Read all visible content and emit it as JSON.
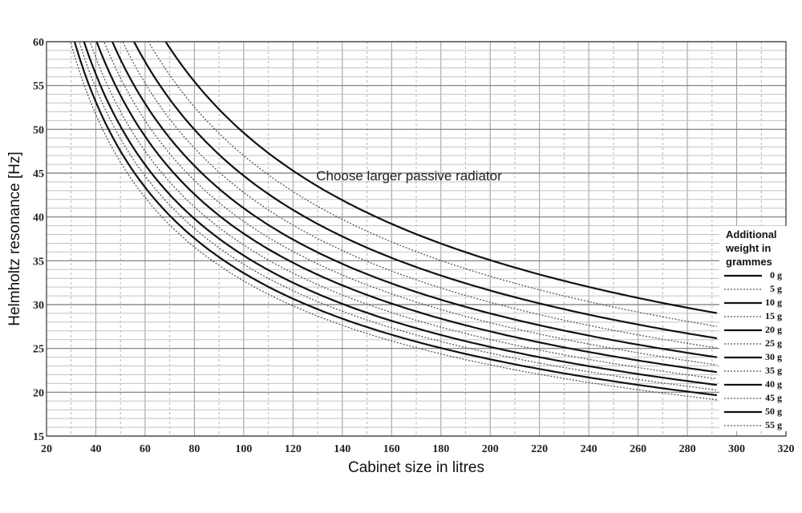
{
  "chart_data": {
    "type": "line",
    "xlabel": "Cabinet size in litres",
    "ylabel": "Helmholtz resonance [Hz]",
    "xlim": [
      20,
      320
    ],
    "ylim": [
      15,
      60
    ],
    "xticks": [
      20,
      40,
      60,
      80,
      100,
      120,
      140,
      160,
      180,
      200,
      220,
      240,
      260,
      280,
      300,
      320
    ],
    "yticks": [
      15,
      20,
      25,
      30,
      35,
      40,
      45,
      50,
      55,
      60
    ],
    "grid": true,
    "annotation": "Choose larger passive radiator",
    "legend": {
      "title": "Additional weight in grammes",
      "title_lines": [
        "Additional",
        "weight in",
        "grammes"
      ],
      "placement": "right"
    },
    "curve_model": "y = k / sqrt(x)",
    "x": [
      20,
      292
    ],
    "series": [
      {
        "name": "0 g",
        "style": "solid",
        "k": 496
      },
      {
        "name": "5 g",
        "style": "dotted",
        "k": 470
      },
      {
        "name": "10 g",
        "style": "solid",
        "k": 447
      },
      {
        "name": "15 g",
        "style": "dotted",
        "k": 428
      },
      {
        "name": "20 g",
        "style": "solid",
        "k": 410
      },
      {
        "name": "25 g",
        "style": "dotted",
        "k": 395
      },
      {
        "name": "30 g",
        "style": "solid",
        "k": 381
      },
      {
        "name": "35 g",
        "style": "dotted",
        "k": 368
      },
      {
        "name": "40 g",
        "style": "solid",
        "k": 356
      },
      {
        "name": "45 g",
        "style": "dotted",
        "k": 346
      },
      {
        "name": "50 g",
        "style": "solid",
        "k": 336
      },
      {
        "name": "55 g",
        "style": "dotted",
        "k": 327
      }
    ]
  }
}
